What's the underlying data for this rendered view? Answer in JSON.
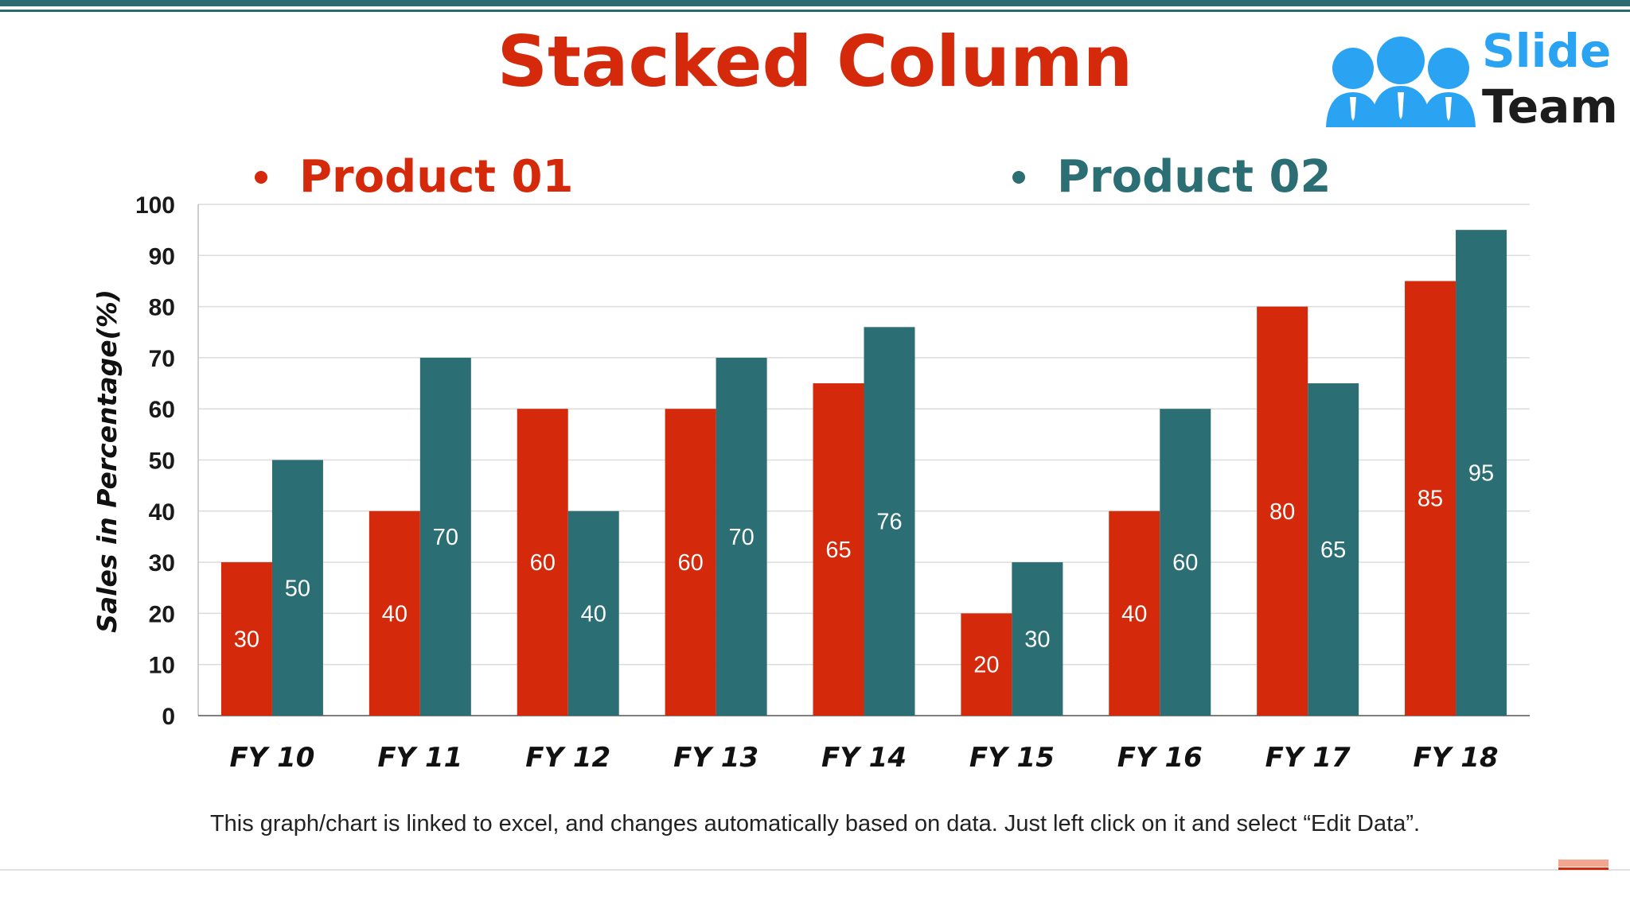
{
  "title": "Stacked Column",
  "logo": {
    "line1": "Slide",
    "line2": "Team"
  },
  "footnote": "This graph/chart is linked to excel, and changes automatically based on data. Just left click on it and select “Edit Data”.",
  "colors": {
    "product01": "#d42a0b",
    "product02": "#2b6e74",
    "title": "#d42a0b",
    "accent": "#2b6a70"
  },
  "chart_data": {
    "type": "bar",
    "title": "",
    "xlabel": "",
    "ylabel": "Sales in Percentage(%)",
    "ylim": [
      0,
      100
    ],
    "yticks": [
      0,
      10,
      20,
      30,
      40,
      50,
      60,
      70,
      80,
      90,
      100
    ],
    "grid": true,
    "legend": "top",
    "categories": [
      "FY 10",
      "FY 11",
      "FY 12",
      "FY 13",
      "FY 14",
      "FY 15",
      "FY 16",
      "FY 17",
      "FY 18"
    ],
    "series": [
      {
        "name": "Product 01",
        "color": "#d42a0b",
        "values": [
          30,
          40,
          60,
          60,
          65,
          20,
          40,
          80,
          85
        ]
      },
      {
        "name": "Product 02",
        "color": "#2b6e74",
        "values": [
          50,
          70,
          40,
          70,
          76,
          30,
          60,
          65,
          95
        ]
      }
    ]
  }
}
